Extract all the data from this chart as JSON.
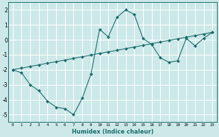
{
  "xlabel": "Humidex (Indice chaleur)",
  "xlim": [
    -0.5,
    23.5
  ],
  "ylim": [
    -5.5,
    2.5
  ],
  "yticks": [
    -5,
    -4,
    -3,
    -2,
    -1,
    0,
    1,
    2
  ],
  "xticks": [
    0,
    1,
    2,
    3,
    4,
    5,
    6,
    7,
    8,
    9,
    10,
    11,
    12,
    13,
    14,
    15,
    16,
    17,
    18,
    19,
    20,
    21,
    22,
    23
  ],
  "bg_color": "#cce8e8",
  "grid_color": "#ffffff",
  "line_color": "#1a6b6b",
  "curve_x": [
    0,
    1,
    2,
    3,
    4,
    5,
    6,
    7,
    8,
    9,
    10,
    11,
    12,
    13,
    14,
    15,
    16,
    17,
    18,
    19,
    20,
    21,
    22,
    23
  ],
  "curve_y": [
    -2.0,
    -2.2,
    -3.0,
    -3.4,
    -4.1,
    -4.5,
    -4.6,
    -5.0,
    -3.9,
    -2.3,
    0.7,
    0.2,
    1.5,
    2.0,
    1.7,
    0.1,
    -0.3,
    -1.2,
    -1.5,
    -1.4,
    0.1,
    -0.4,
    0.1,
    0.5
  ],
  "linear_x": [
    0,
    1,
    2,
    3,
    4,
    5,
    6,
    7,
    8,
    9,
    10,
    11,
    12,
    13,
    14,
    15,
    16,
    17,
    18,
    19,
    20,
    21,
    22,
    23
  ],
  "linear_y": [
    -2.0,
    -1.89,
    -1.78,
    -1.67,
    -1.56,
    -1.46,
    -1.35,
    -1.24,
    -1.13,
    -1.02,
    -0.91,
    -0.8,
    -0.7,
    -0.59,
    -0.48,
    -0.37,
    -0.26,
    -0.15,
    -0.04,
    0.07,
    0.17,
    0.28,
    0.39,
    0.5
  ]
}
